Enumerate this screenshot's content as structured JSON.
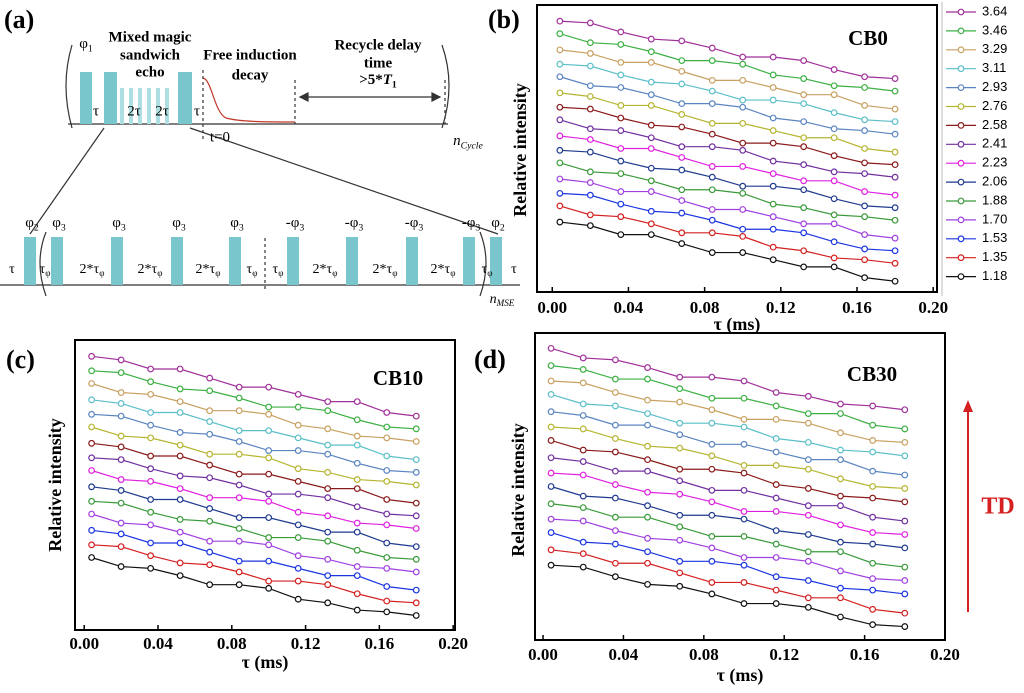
{
  "panel_a": {
    "label": "(a)",
    "mse_title": [
      "Mixed magic",
      "sandwich",
      "echo"
    ],
    "fid_title": [
      "Free induction",
      "decay"
    ],
    "recycle_title": [
      "Recycle delay",
      "time"
    ],
    "recycle_time": {
      "base": ">5*",
      "italic": "T",
      "sub": "1"
    },
    "phi1": {
      "base": "φ",
      "sub": "1"
    },
    "tau_top": [
      "τ",
      "2τ",
      "2τ",
      "τ"
    ],
    "t0": "t=0",
    "n_cycle": {
      "base": "n",
      "sub": "Cycle"
    },
    "mse_phases": [
      {
        "base": "φ",
        "sub": "2"
      },
      {
        "base": "φ",
        "sub": "3"
      },
      {
        "base": "φ",
        "sub": "3"
      },
      {
        "base": "φ",
        "sub": "3"
      },
      {
        "base": "φ",
        "sub": "3"
      },
      {
        "base": "-φ",
        "sub": "3"
      },
      {
        "base": "-φ",
        "sub": "3"
      },
      {
        "base": "-φ",
        "sub": "3"
      },
      {
        "base": "-φ",
        "sub": "3"
      },
      {
        "base": "φ",
        "sub": "2"
      }
    ],
    "mse_delays": [
      "τ",
      {
        "base": "τ",
        "sub": "φ"
      },
      {
        "base": "2*τ",
        "sub": "φ"
      },
      {
        "base": "2*τ",
        "sub": "φ"
      },
      {
        "base": "2*τ",
        "sub": "φ"
      },
      {
        "base": "τ",
        "sub": "φ"
      },
      {
        "base": "τ",
        "sub": "φ"
      },
      {
        "base": "2*τ",
        "sub": "φ"
      },
      {
        "base": "2*τ",
        "sub": "φ"
      },
      {
        "base": "2*τ",
        "sub": "φ"
      },
      {
        "base": "τ",
        "sub": "φ"
      },
      "τ"
    ],
    "n_mse": {
      "base": "n",
      "sub": "MSE"
    }
  },
  "td_label": "TD",
  "chart_data": [
    {
      "type": "line",
      "panel_label": "(b)",
      "title": "CB0",
      "x_label": "τ (ms)",
      "y_label": "Relative intensity",
      "legend": "right",
      "x": [
        0.004,
        0.02,
        0.036,
        0.052,
        0.068,
        0.084,
        0.1,
        0.116,
        0.132,
        0.148,
        0.164,
        0.18
      ],
      "xlim": [
        -0.008,
        0.202
      ],
      "xticks": [
        {
          "value": 0,
          "label": "0.00"
        },
        0.04,
        0.08,
        0.12,
        0.16,
        {
          "value": 0.2,
          "label": "0.20"
        }
      ],
      "ylim": [
        0,
        16
      ],
      "series": [
        {
          "name": "1.18",
          "color": "#111111",
          "values": [
            3.9,
            3.7,
            3.2,
            3.2,
            2.7,
            2.2,
            2.2,
            1.8,
            1.4,
            1.4,
            0.8,
            0.6
          ]
        },
        {
          "name": "1.35",
          "color": "#d42020",
          "values": [
            4.8,
            4.3,
            4.2,
            3.8,
            3.3,
            3.3,
            3.1,
            2.5,
            2.3,
            1.9,
            1.8,
            1.6
          ]
        },
        {
          "name": "1.53",
          "color": "#1a35e0",
          "values": [
            5.5,
            5.4,
            4.9,
            4.5,
            4.4,
            4.0,
            3.5,
            3.5,
            3.3,
            2.8,
            2.4,
            2.3
          ]
        },
        {
          "name": "1.70",
          "color": "#a040e0",
          "values": [
            6.3,
            6.1,
            5.6,
            5.6,
            5.1,
            4.6,
            4.6,
            4.2,
            3.8,
            3.8,
            3.2,
            3.0
          ]
        },
        {
          "name": "1.88",
          "color": "#3a9a3a",
          "values": [
            7.2,
            6.7,
            6.6,
            6.2,
            5.7,
            5.7,
            5.5,
            4.9,
            4.7,
            4.3,
            4.2,
            4.0
          ]
        },
        {
          "name": "2.06",
          "color": "#1f3a8f",
          "values": [
            7.9,
            7.8,
            7.3,
            6.9,
            6.8,
            6.4,
            5.9,
            5.9,
            5.7,
            5.2,
            4.8,
            4.7
          ]
        },
        {
          "name": "2.23",
          "color": "#e020e0",
          "values": [
            8.7,
            8.5,
            8.0,
            8.0,
            7.5,
            7.0,
            7.0,
            6.6,
            6.2,
            6.2,
            5.6,
            5.4
          ]
        },
        {
          "name": "2.41",
          "color": "#7030a0",
          "values": [
            9.6,
            9.1,
            9.0,
            8.6,
            8.1,
            8.1,
            7.9,
            7.3,
            7.1,
            6.7,
            6.6,
            6.4
          ]
        },
        {
          "name": "2.58",
          "color": "#8b1a1a",
          "values": [
            10.3,
            10.2,
            9.7,
            9.3,
            9.2,
            8.8,
            8.3,
            8.3,
            8.1,
            7.6,
            7.2,
            7.1
          ]
        },
        {
          "name": "2.76",
          "color": "#b5b531",
          "values": [
            11.1,
            10.9,
            10.4,
            10.4,
            9.9,
            9.4,
            9.4,
            9.0,
            8.6,
            8.6,
            8.0,
            7.8
          ]
        },
        {
          "name": "2.93",
          "color": "#5a85c0",
          "values": [
            12.0,
            11.5,
            11.4,
            11.0,
            10.5,
            10.5,
            10.3,
            9.7,
            9.5,
            9.1,
            9.0,
            8.8
          ]
        },
        {
          "name": "3.11",
          "color": "#5bbfc8",
          "values": [
            12.7,
            12.6,
            12.1,
            11.7,
            11.6,
            11.2,
            10.7,
            10.7,
            10.5,
            10.0,
            9.6,
            9.5
          ]
        },
        {
          "name": "3.29",
          "color": "#c8a060",
          "values": [
            13.5,
            13.3,
            12.8,
            12.8,
            12.3,
            11.8,
            11.8,
            11.4,
            11.0,
            11.0,
            10.4,
            10.2
          ]
        },
        {
          "name": "3.46",
          "color": "#3cb043",
          "values": [
            14.4,
            13.9,
            13.8,
            13.4,
            12.9,
            12.9,
            12.7,
            12.1,
            11.9,
            11.5,
            11.4,
            11.2
          ]
        },
        {
          "name": "3.64",
          "color": "#a0309a",
          "values": [
            15.1,
            15.0,
            14.5,
            14.1,
            14.0,
            13.6,
            13.1,
            13.1,
            12.9,
            12.4,
            12.0,
            11.9
          ]
        }
      ]
    },
    {
      "type": "line",
      "panel_label": "(c)",
      "title": "CB10",
      "x_label": "τ (ms)",
      "y_label": "Relative intensity",
      "x": [
        0.004,
        0.02,
        0.036,
        0.052,
        0.068,
        0.084,
        0.1,
        0.116,
        0.132,
        0.148,
        0.164,
        0.18
      ],
      "xlim": [
        -0.005,
        0.201
      ],
      "xticks": [
        {
          "value": 0,
          "label": "0.00"
        },
        0.04,
        0.08,
        0.12,
        0.16,
        {
          "value": 0.2,
          "label": "0.20"
        }
      ],
      "ylim": [
        0,
        16
      ],
      "series": [
        {
          "color": "#111111",
          "values": [
            4.0,
            3.5,
            3.4,
            3.0,
            2.5,
            2.5,
            2.3,
            1.7,
            1.5,
            1.1,
            1.0,
            0.8
          ]
        },
        {
          "color": "#d42020",
          "values": [
            4.7,
            4.6,
            4.1,
            3.7,
            3.6,
            3.2,
            2.7,
            2.7,
            2.5,
            2.0,
            1.6,
            1.5
          ]
        },
        {
          "color": "#1a35e0",
          "values": [
            5.5,
            5.3,
            4.8,
            4.8,
            4.3,
            3.8,
            3.8,
            3.4,
            3.0,
            3.0,
            2.4,
            2.2
          ]
        },
        {
          "color": "#a040e0",
          "values": [
            6.4,
            5.9,
            5.8,
            5.4,
            4.9,
            4.9,
            4.7,
            4.1,
            3.9,
            3.5,
            3.4,
            3.2
          ]
        },
        {
          "color": "#3a9a3a",
          "values": [
            7.1,
            7.0,
            6.5,
            6.1,
            6.0,
            5.6,
            5.1,
            5.1,
            4.9,
            4.4,
            4.0,
            3.9
          ]
        },
        {
          "color": "#1f3a8f",
          "values": [
            7.9,
            7.7,
            7.2,
            7.2,
            6.7,
            6.2,
            6.2,
            5.8,
            5.4,
            5.4,
            4.8,
            4.6
          ]
        },
        {
          "color": "#e020e0",
          "values": [
            8.8,
            8.3,
            8.2,
            7.8,
            7.3,
            7.3,
            7.1,
            6.5,
            6.3,
            5.9,
            5.8,
            5.6
          ]
        },
        {
          "color": "#7030a0",
          "values": [
            9.5,
            9.4,
            8.9,
            8.5,
            8.4,
            8.0,
            7.5,
            7.5,
            7.3,
            6.8,
            6.4,
            6.3
          ]
        },
        {
          "color": "#8b1a1a",
          "values": [
            10.3,
            10.1,
            9.6,
            9.6,
            9.1,
            8.6,
            8.6,
            8.2,
            7.8,
            7.8,
            7.2,
            7.0
          ]
        },
        {
          "color": "#b5b531",
          "values": [
            11.2,
            10.7,
            10.6,
            10.2,
            9.7,
            9.7,
            9.5,
            8.9,
            8.7,
            8.3,
            8.2,
            8.0
          ]
        },
        {
          "color": "#5a85c0",
          "values": [
            11.9,
            11.8,
            11.3,
            10.9,
            10.8,
            10.4,
            9.9,
            9.9,
            9.7,
            9.2,
            8.8,
            8.7
          ]
        },
        {
          "color": "#5bbfc8",
          "values": [
            12.7,
            12.5,
            12.0,
            12.0,
            11.5,
            11.0,
            11.0,
            10.6,
            10.2,
            10.2,
            9.6,
            9.4
          ]
        },
        {
          "color": "#c8a060",
          "values": [
            13.6,
            13.1,
            13.0,
            12.6,
            12.1,
            12.1,
            11.9,
            11.3,
            11.1,
            10.7,
            10.6,
            10.4
          ]
        },
        {
          "color": "#3cb043",
          "values": [
            14.3,
            14.2,
            13.7,
            13.3,
            13.2,
            12.8,
            12.3,
            12.3,
            12.1,
            11.6,
            11.2,
            11.1
          ]
        },
        {
          "color": "#a0309a",
          "values": [
            15.1,
            14.9,
            14.4,
            14.4,
            13.9,
            13.4,
            13.4,
            13.0,
            12.6,
            12.6,
            12.0,
            11.8
          ]
        }
      ]
    },
    {
      "type": "line",
      "panel_label": "(d)",
      "title": "CB30",
      "x_label": "τ (ms)",
      "y_label": "Relative intensity",
      "x": [
        0.004,
        0.02,
        0.036,
        0.052,
        0.068,
        0.084,
        0.1,
        0.116,
        0.132,
        0.148,
        0.164,
        0.18
      ],
      "xlim": [
        -0.004,
        0.2
      ],
      "xticks": [
        {
          "value": 0,
          "label": "0.00"
        },
        0.04,
        0.08,
        0.12,
        0.16,
        {
          "value": 0.2,
          "label": "0.20"
        }
      ],
      "ylim": [
        0,
        16
      ],
      "series": [
        {
          "color": "#111111",
          "values": [
            3.9,
            3.8,
            3.3,
            2.9,
            2.8,
            2.4,
            1.9,
            1.9,
            1.7,
            1.2,
            0.8,
            0.7
          ]
        },
        {
          "color": "#d42020",
          "values": [
            4.7,
            4.5,
            4.0,
            4.0,
            3.5,
            3.0,
            3.0,
            2.6,
            2.2,
            2.2,
            1.6,
            1.4
          ]
        },
        {
          "color": "#1a35e0",
          "values": [
            5.6,
            5.1,
            5.0,
            4.6,
            4.1,
            4.1,
            3.9,
            3.3,
            3.1,
            2.7,
            2.6,
            2.4
          ]
        },
        {
          "color": "#a040e0",
          "values": [
            6.3,
            6.2,
            5.7,
            5.3,
            5.2,
            4.8,
            4.3,
            4.3,
            4.1,
            3.6,
            3.2,
            3.1
          ]
        },
        {
          "color": "#3a9a3a",
          "values": [
            7.1,
            6.9,
            6.4,
            6.4,
            5.9,
            5.4,
            5.4,
            5.0,
            4.6,
            4.6,
            4.0,
            3.8
          ]
        },
        {
          "color": "#1f3a8f",
          "values": [
            8.0,
            7.5,
            7.4,
            7.0,
            6.5,
            6.5,
            6.3,
            5.7,
            5.5,
            5.1,
            5.0,
            4.8
          ]
        },
        {
          "color": "#e020e0",
          "values": [
            8.7,
            8.6,
            8.1,
            7.7,
            7.6,
            7.2,
            6.7,
            6.7,
            6.5,
            6.0,
            5.6,
            5.5
          ]
        },
        {
          "color": "#7030a0",
          "values": [
            9.5,
            9.3,
            8.8,
            8.8,
            8.3,
            7.8,
            7.8,
            7.4,
            7.0,
            7.0,
            6.4,
            6.2
          ]
        },
        {
          "color": "#8b1a1a",
          "values": [
            10.4,
            9.9,
            9.8,
            9.4,
            8.9,
            8.9,
            8.7,
            8.1,
            7.9,
            7.5,
            7.4,
            7.2
          ]
        },
        {
          "color": "#b5b531",
          "values": [
            11.1,
            11.0,
            10.5,
            10.1,
            10.0,
            9.6,
            9.1,
            9.1,
            8.9,
            8.4,
            8.0,
            7.9
          ]
        },
        {
          "color": "#5a85c0",
          "values": [
            11.9,
            11.7,
            11.2,
            11.2,
            10.7,
            10.2,
            10.2,
            9.8,
            9.4,
            9.4,
            8.8,
            8.6
          ]
        },
        {
          "color": "#5bbfc8",
          "values": [
            12.8,
            12.3,
            12.2,
            11.8,
            11.3,
            11.3,
            11.1,
            10.5,
            10.3,
            9.9,
            9.8,
            9.6
          ]
        },
        {
          "color": "#c8a060",
          "values": [
            13.5,
            13.4,
            12.9,
            12.5,
            12.4,
            12.0,
            11.5,
            11.5,
            11.3,
            10.8,
            10.4,
            10.3
          ]
        },
        {
          "color": "#3cb043",
          "values": [
            14.3,
            14.1,
            13.6,
            13.6,
            13.1,
            12.6,
            12.6,
            12.2,
            11.8,
            11.8,
            11.2,
            11.0
          ]
        },
        {
          "color": "#a0309a",
          "values": [
            15.2,
            14.7,
            14.6,
            14.2,
            13.7,
            13.7,
            13.5,
            12.9,
            12.7,
            12.3,
            12.2,
            12.0
          ]
        }
      ]
    }
  ]
}
